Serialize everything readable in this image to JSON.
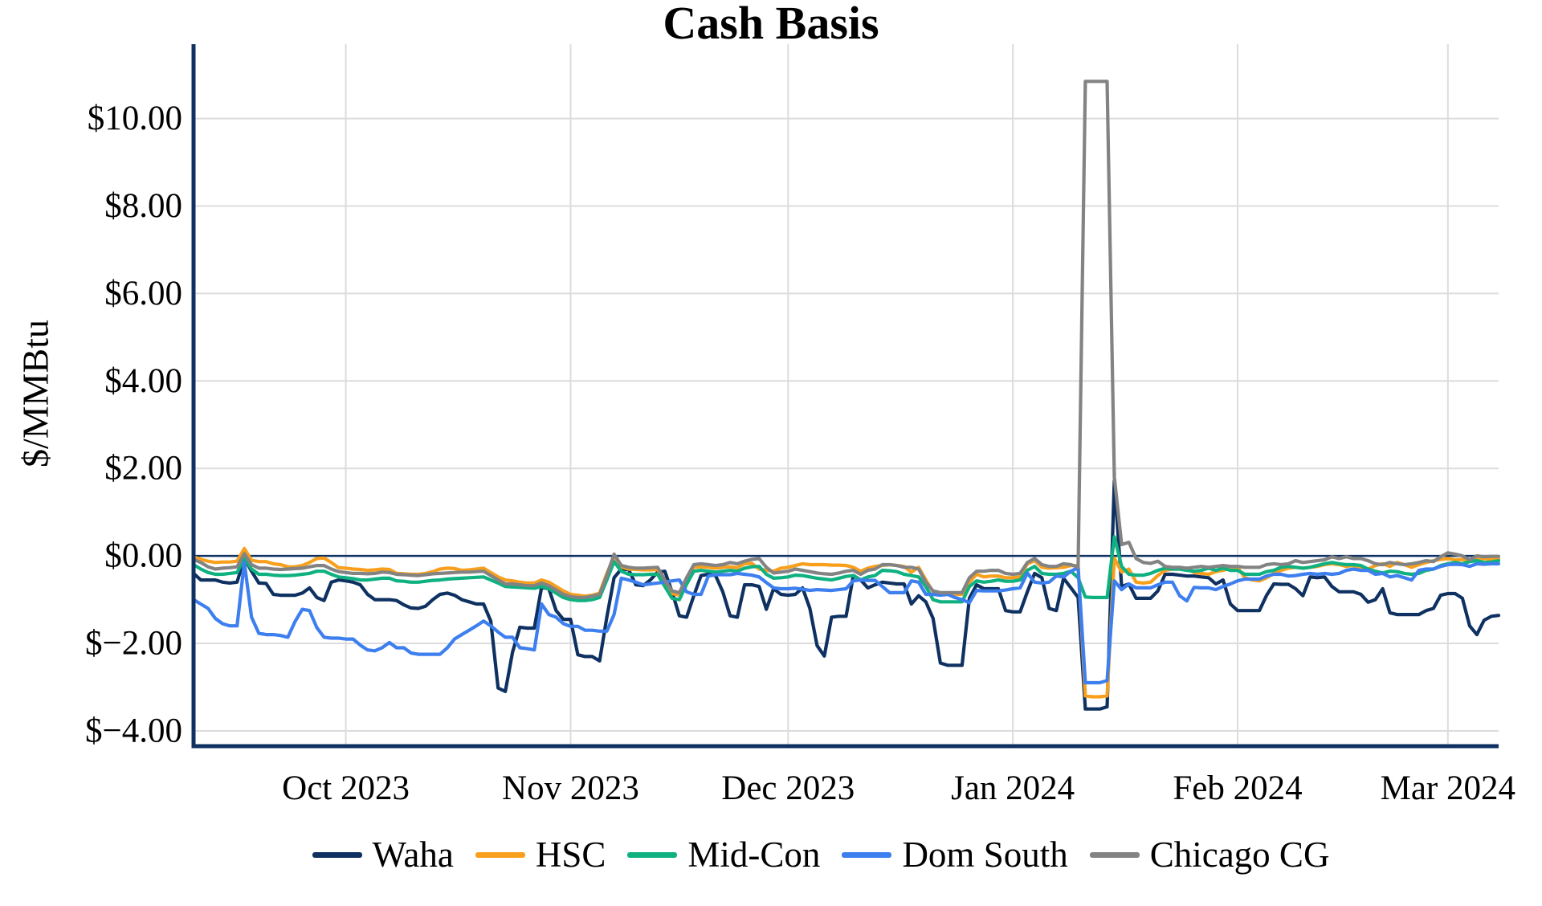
{
  "chart_data": {
    "type": "line",
    "title": "Cash Basis",
    "xlabel": "",
    "ylabel": "$/MMBtu",
    "grid": true,
    "legend_position": "bottom-center",
    "background": "#ffffff",
    "colors": {
      "axis": "#0E3161",
      "grid": "#DCDCDC",
      "text": "#000000"
    },
    "ylim": [
      -4.35,
      11.7
    ],
    "yticks": [
      {
        "v": 10,
        "label": "$10.00"
      },
      {
        "v": 8,
        "label": "$8.00"
      },
      {
        "v": 6,
        "label": "$6.00"
      },
      {
        "v": 4,
        "label": "$4.00"
      },
      {
        "v": 2,
        "label": "$2.00"
      },
      {
        "v": 0,
        "label": "$0.00"
      },
      {
        "v": -2,
        "label": "$−2.00"
      },
      {
        "v": -4,
        "label": "$−4.00"
      }
    ],
    "x": {
      "start_date": "2023-09-10",
      "frequency": "daily",
      "count": 181
    },
    "xticks": [
      {
        "i": 21,
        "label": "Oct 2023"
      },
      {
        "i": 52,
        "label": "Nov 2023"
      },
      {
        "i": 82,
        "label": "Dec 2023"
      },
      {
        "i": 113,
        "label": "Jan 2024"
      },
      {
        "i": 144,
        "label": "Feb 2024"
      },
      {
        "i": 173,
        "label": "Mar 2024"
      }
    ],
    "series": [
      {
        "name": "Waha",
        "color": "#0E3161",
        "values": [
          -0.4,
          -0.55,
          -0.55,
          -0.55,
          -0.6,
          -0.62,
          -0.6,
          -0.05,
          -0.35,
          -0.62,
          -0.63,
          -0.88,
          -0.9,
          -0.9,
          -0.9,
          -0.85,
          -0.73,
          -0.95,
          -1.02,
          -0.6,
          -0.55,
          -0.57,
          -0.6,
          -0.66,
          -0.88,
          -1.0,
          -1.0,
          -1.0,
          -1.02,
          -1.12,
          -1.19,
          -1.2,
          -1.15,
          -1.0,
          -0.88,
          -0.85,
          -0.9,
          -1.0,
          -1.05,
          -1.1,
          -1.1,
          -1.49,
          -3.02,
          -3.1,
          -2.2,
          -1.63,
          -1.65,
          -1.65,
          -0.72,
          -0.75,
          -1.25,
          -1.45,
          -1.45,
          -2.26,
          -2.3,
          -2.3,
          -2.4,
          -1.4,
          -0.5,
          -0.3,
          -0.31,
          -0.66,
          -0.68,
          -0.55,
          -0.37,
          -0.35,
          -0.82,
          -1.37,
          -1.4,
          -0.91,
          -0.45,
          -0.42,
          -0.45,
          -0.82,
          -1.37,
          -1.4,
          -0.66,
          -0.66,
          -0.7,
          -1.22,
          -0.75,
          -0.88,
          -0.9,
          -0.88,
          -0.73,
          -1.2,
          -2.05,
          -2.29,
          -1.4,
          -1.38,
          -1.38,
          -0.45,
          -0.55,
          -0.73,
          -0.66,
          -0.6,
          -0.62,
          -0.64,
          -0.64,
          -1.1,
          -0.91,
          -1.05,
          -1.43,
          -2.45,
          -2.5,
          -2.5,
          -2.5,
          -0.97,
          -0.66,
          -0.75,
          -0.75,
          -0.75,
          -1.25,
          -1.28,
          -1.28,
          -0.82,
          -0.4,
          -0.5,
          -1.2,
          -1.25,
          -0.51,
          -0.73,
          -0.95,
          -3.5,
          -3.5,
          -3.5,
          -3.45,
          1.72,
          -0.7,
          -0.64,
          -0.97,
          -0.97,
          -0.97,
          -0.8,
          -0.42,
          -0.42,
          -0.44,
          -0.46,
          -0.46,
          -0.48,
          -0.5,
          -0.64,
          -0.55,
          -1.1,
          -1.25,
          -1.25,
          -1.25,
          -1.25,
          -0.9,
          -0.64,
          -0.65,
          -0.65,
          -0.75,
          -0.91,
          -0.48,
          -0.5,
          -0.48,
          -0.7,
          -0.82,
          -0.82,
          -0.82,
          -0.88,
          -1.06,
          -1.0,
          -0.75,
          -1.3,
          -1.34,
          -1.34,
          -1.34,
          -1.34,
          -1.25,
          -1.2,
          -0.9,
          -0.86,
          -0.86,
          -0.97,
          -1.6,
          -1.8,
          -1.47,
          -1.38,
          -1.36
        ]
      },
      {
        "name": "HSC",
        "color": "#F8A01E",
        "values": [
          -0.02,
          -0.08,
          -0.12,
          -0.15,
          -0.14,
          -0.14,
          -0.12,
          0.17,
          -0.1,
          -0.13,
          -0.13,
          -0.18,
          -0.2,
          -0.25,
          -0.25,
          -0.22,
          -0.15,
          -0.06,
          -0.05,
          -0.15,
          -0.27,
          -0.28,
          -0.3,
          -0.31,
          -0.33,
          -0.32,
          -0.3,
          -0.31,
          -0.4,
          -0.41,
          -0.42,
          -0.42,
          -0.4,
          -0.36,
          -0.3,
          -0.28,
          -0.29,
          -0.33,
          -0.32,
          -0.3,
          -0.28,
          -0.38,
          -0.48,
          -0.55,
          -0.57,
          -0.6,
          -0.62,
          -0.62,
          -0.55,
          -0.6,
          -0.7,
          -0.8,
          -0.88,
          -0.9,
          -0.92,
          -0.9,
          -0.85,
          -0.4,
          -0.02,
          -0.25,
          -0.3,
          -0.31,
          -0.32,
          -0.32,
          -0.31,
          -0.6,
          -0.86,
          -0.9,
          -0.55,
          -0.26,
          -0.25,
          -0.26,
          -0.28,
          -0.26,
          -0.25,
          -0.27,
          -0.18,
          -0.17,
          -0.3,
          -0.33,
          -0.35,
          -0.28,
          -0.26,
          -0.22,
          -0.18,
          -0.2,
          -0.2,
          -0.2,
          -0.21,
          -0.21,
          -0.22,
          -0.26,
          -0.35,
          -0.28,
          -0.24,
          -0.22,
          -0.2,
          -0.22,
          -0.24,
          -0.37,
          -0.26,
          -0.55,
          -0.82,
          -0.88,
          -0.88,
          -0.88,
          -0.88,
          -0.6,
          -0.42,
          -0.48,
          -0.46,
          -0.46,
          -0.5,
          -0.5,
          -0.48,
          -0.18,
          -0.11,
          -0.26,
          -0.28,
          -0.27,
          -0.26,
          -0.22,
          -0.22,
          -3.2,
          -3.22,
          -3.22,
          -3.2,
          -0.05,
          -0.37,
          -0.3,
          -0.6,
          -0.62,
          -0.6,
          -0.45,
          -0.33,
          -0.3,
          -0.3,
          -0.28,
          -0.38,
          -0.4,
          -0.42,
          -0.36,
          -0.33,
          -0.28,
          -0.26,
          -0.5,
          -0.55,
          -0.57,
          -0.5,
          -0.4,
          -0.33,
          -0.28,
          -0.26,
          -0.28,
          -0.26,
          -0.24,
          -0.2,
          -0.18,
          -0.2,
          -0.24,
          -0.22,
          -0.26,
          -0.3,
          -0.22,
          -0.18,
          -0.24,
          -0.15,
          -0.2,
          -0.26,
          -0.2,
          -0.15,
          -0.11,
          -0.08,
          -0.06,
          -0.09,
          -0.08,
          -0.11,
          -0.08,
          -0.06,
          -0.08,
          -0.07
        ]
      },
      {
        "name": "Mid-Con",
        "color": "#0FB181",
        "values": [
          -0.2,
          -0.3,
          -0.38,
          -0.42,
          -0.42,
          -0.4,
          -0.38,
          -0.05,
          -0.3,
          -0.42,
          -0.42,
          -0.44,
          -0.45,
          -0.45,
          -0.44,
          -0.42,
          -0.4,
          -0.35,
          -0.35,
          -0.42,
          -0.48,
          -0.5,
          -0.52,
          -0.55,
          -0.55,
          -0.53,
          -0.51,
          -0.51,
          -0.57,
          -0.58,
          -0.6,
          -0.6,
          -0.58,
          -0.56,
          -0.55,
          -0.53,
          -0.52,
          -0.51,
          -0.5,
          -0.49,
          -0.48,
          -0.55,
          -0.62,
          -0.7,
          -0.71,
          -0.72,
          -0.73,
          -0.74,
          -0.7,
          -0.75,
          -0.85,
          -0.95,
          -1.0,
          -1.02,
          -1.02,
          -1.0,
          -0.95,
          -0.55,
          -0.13,
          -0.35,
          -0.42,
          -0.43,
          -0.43,
          -0.42,
          -0.42,
          -0.7,
          -0.97,
          -1.0,
          -0.65,
          -0.35,
          -0.33,
          -0.35,
          -0.37,
          -0.35,
          -0.33,
          -0.35,
          -0.28,
          -0.25,
          -0.24,
          -0.42,
          -0.51,
          -0.5,
          -0.48,
          -0.44,
          -0.45,
          -0.48,
          -0.51,
          -0.53,
          -0.55,
          -0.51,
          -0.47,
          -0.45,
          -0.55,
          -0.48,
          -0.45,
          -0.33,
          -0.34,
          -0.36,
          -0.42,
          -0.45,
          -0.48,
          -0.7,
          -1.0,
          -1.05,
          -1.05,
          -1.05,
          -1.05,
          -0.7,
          -0.57,
          -0.6,
          -0.58,
          -0.55,
          -0.58,
          -0.58,
          -0.55,
          -0.33,
          -0.24,
          -0.4,
          -0.42,
          -0.42,
          -0.4,
          -0.35,
          -0.5,
          -0.94,
          -0.95,
          -0.95,
          -0.95,
          0.44,
          -0.24,
          -0.42,
          -0.44,
          -0.44,
          -0.4,
          -0.33,
          -0.28,
          -0.3,
          -0.3,
          -0.33,
          -0.35,
          -0.33,
          -0.28,
          -0.33,
          -0.28,
          -0.33,
          -0.33,
          -0.42,
          -0.42,
          -0.42,
          -0.36,
          -0.33,
          -0.26,
          -0.24,
          -0.26,
          -0.28,
          -0.26,
          -0.22,
          -0.18,
          -0.15,
          -0.18,
          -0.2,
          -0.2,
          -0.22,
          -0.3,
          -0.35,
          -0.39,
          -0.35,
          -0.36,
          -0.4,
          -0.42,
          -0.4,
          -0.33,
          -0.3,
          -0.22,
          -0.18,
          -0.15,
          -0.18,
          -0.13,
          -0.11,
          -0.15,
          -0.14,
          -0.11
        ]
      },
      {
        "name": "Dom South",
        "color": "#3E7FEF",
        "values": [
          -1.0,
          -1.1,
          -1.2,
          -1.43,
          -1.55,
          -1.6,
          -1.6,
          -0.15,
          -1.4,
          -1.77,
          -1.8,
          -1.8,
          -1.82,
          -1.86,
          -1.5,
          -1.22,
          -1.25,
          -1.64,
          -1.86,
          -1.88,
          -1.88,
          -1.9,
          -1.9,
          -2.04,
          -2.15,
          -2.17,
          -2.1,
          -1.98,
          -2.1,
          -2.1,
          -2.22,
          -2.25,
          -2.25,
          -2.25,
          -2.25,
          -2.1,
          -1.9,
          -1.8,
          -1.7,
          -1.6,
          -1.49,
          -1.6,
          -1.74,
          -1.86,
          -1.86,
          -2.1,
          -2.12,
          -2.15,
          -1.1,
          -1.34,
          -1.4,
          -1.55,
          -1.61,
          -1.61,
          -1.7,
          -1.7,
          -1.72,
          -1.72,
          -1.34,
          -0.51,
          -0.55,
          -0.6,
          -0.66,
          -0.64,
          -0.62,
          -0.6,
          -0.57,
          -0.55,
          -0.82,
          -0.88,
          -0.88,
          -0.46,
          -0.43,
          -0.43,
          -0.43,
          -0.4,
          -0.42,
          -0.44,
          -0.48,
          -0.61,
          -0.73,
          -0.75,
          -0.75,
          -0.74,
          -0.76,
          -0.79,
          -0.77,
          -0.78,
          -0.79,
          -0.77,
          -0.75,
          -0.57,
          -0.55,
          -0.56,
          -0.56,
          -0.7,
          -0.84,
          -0.84,
          -0.84,
          -0.57,
          -0.6,
          -0.88,
          -0.88,
          -0.9,
          -0.88,
          -0.95,
          -1.0,
          -1.07,
          -0.79,
          -0.8,
          -0.8,
          -0.8,
          -0.78,
          -0.75,
          -0.73,
          -0.39,
          -0.6,
          -0.62,
          -0.6,
          -0.46,
          -0.48,
          -0.35,
          -0.27,
          -2.9,
          -2.9,
          -2.9,
          -2.85,
          -0.57,
          -0.77,
          -0.64,
          -0.73,
          -0.73,
          -0.73,
          -0.66,
          -0.6,
          -0.6,
          -0.91,
          -1.03,
          -0.72,
          -0.73,
          -0.73,
          -0.77,
          -0.7,
          -0.64,
          -0.57,
          -0.53,
          -0.53,
          -0.53,
          -0.46,
          -0.42,
          -0.42,
          -0.46,
          -0.45,
          -0.42,
          -0.4,
          -0.42,
          -0.4,
          -0.42,
          -0.4,
          -0.33,
          -0.3,
          -0.33,
          -0.33,
          -0.42,
          -0.4,
          -0.48,
          -0.45,
          -0.5,
          -0.55,
          -0.33,
          -0.3,
          -0.3,
          -0.24,
          -0.2,
          -0.19,
          -0.2,
          -0.24,
          -0.18,
          -0.19,
          -0.18,
          -0.18
        ]
      },
      {
        "name": "Chicago CG",
        "color": "#838383",
        "values": [
          -0.08,
          -0.15,
          -0.25,
          -0.3,
          -0.28,
          -0.27,
          -0.25,
          0.05,
          -0.2,
          -0.28,
          -0.28,
          -0.3,
          -0.31,
          -0.3,
          -0.29,
          -0.28,
          -0.25,
          -0.22,
          -0.22,
          -0.3,
          -0.36,
          -0.38,
          -0.4,
          -0.4,
          -0.41,
          -0.4,
          -0.37,
          -0.38,
          -0.42,
          -0.43,
          -0.44,
          -0.45,
          -0.43,
          -0.41,
          -0.4,
          -0.39,
          -0.38,
          -0.37,
          -0.37,
          -0.36,
          -0.35,
          -0.45,
          -0.55,
          -0.64,
          -0.64,
          -0.66,
          -0.68,
          -0.68,
          -0.62,
          -0.68,
          -0.78,
          -0.88,
          -0.93,
          -0.95,
          -0.95,
          -0.92,
          -0.88,
          -0.45,
          0.04,
          -0.22,
          -0.26,
          -0.28,
          -0.28,
          -0.27,
          -0.26,
          -0.55,
          -0.8,
          -0.84,
          -0.5,
          -0.2,
          -0.18,
          -0.2,
          -0.22,
          -0.2,
          -0.15,
          -0.18,
          -0.12,
          -0.08,
          -0.06,
          -0.26,
          -0.39,
          -0.37,
          -0.35,
          -0.3,
          -0.33,
          -0.36,
          -0.39,
          -0.41,
          -0.42,
          -0.39,
          -0.35,
          -0.33,
          -0.42,
          -0.33,
          -0.3,
          -0.2,
          -0.2,
          -0.22,
          -0.26,
          -0.26,
          -0.3,
          -0.6,
          -0.8,
          -0.84,
          -0.84,
          -0.84,
          -0.84,
          -0.5,
          -0.35,
          -0.35,
          -0.33,
          -0.33,
          -0.4,
          -0.42,
          -0.4,
          -0.15,
          -0.06,
          -0.2,
          -0.24,
          -0.24,
          -0.18,
          -0.2,
          -0.26,
          10.85,
          10.85,
          10.85,
          10.85,
          1.8,
          0.26,
          0.31,
          -0.06,
          -0.15,
          -0.17,
          -0.12,
          -0.24,
          -0.26,
          -0.26,
          -0.28,
          -0.26,
          -0.24,
          -0.26,
          -0.24,
          -0.22,
          -0.24,
          -0.24,
          -0.26,
          -0.26,
          -0.26,
          -0.2,
          -0.18,
          -0.2,
          -0.18,
          -0.11,
          -0.15,
          -0.13,
          -0.11,
          -0.09,
          -0.02,
          -0.06,
          -0.02,
          -0.06,
          -0.06,
          -0.11,
          -0.18,
          -0.2,
          -0.15,
          -0.18,
          -0.2,
          -0.18,
          -0.15,
          -0.11,
          -0.13,
          -0.02,
          0.07,
          0.04,
          0.0,
          -0.09,
          0.0,
          -0.02,
          -0.01,
          -0.01
        ]
      }
    ]
  }
}
